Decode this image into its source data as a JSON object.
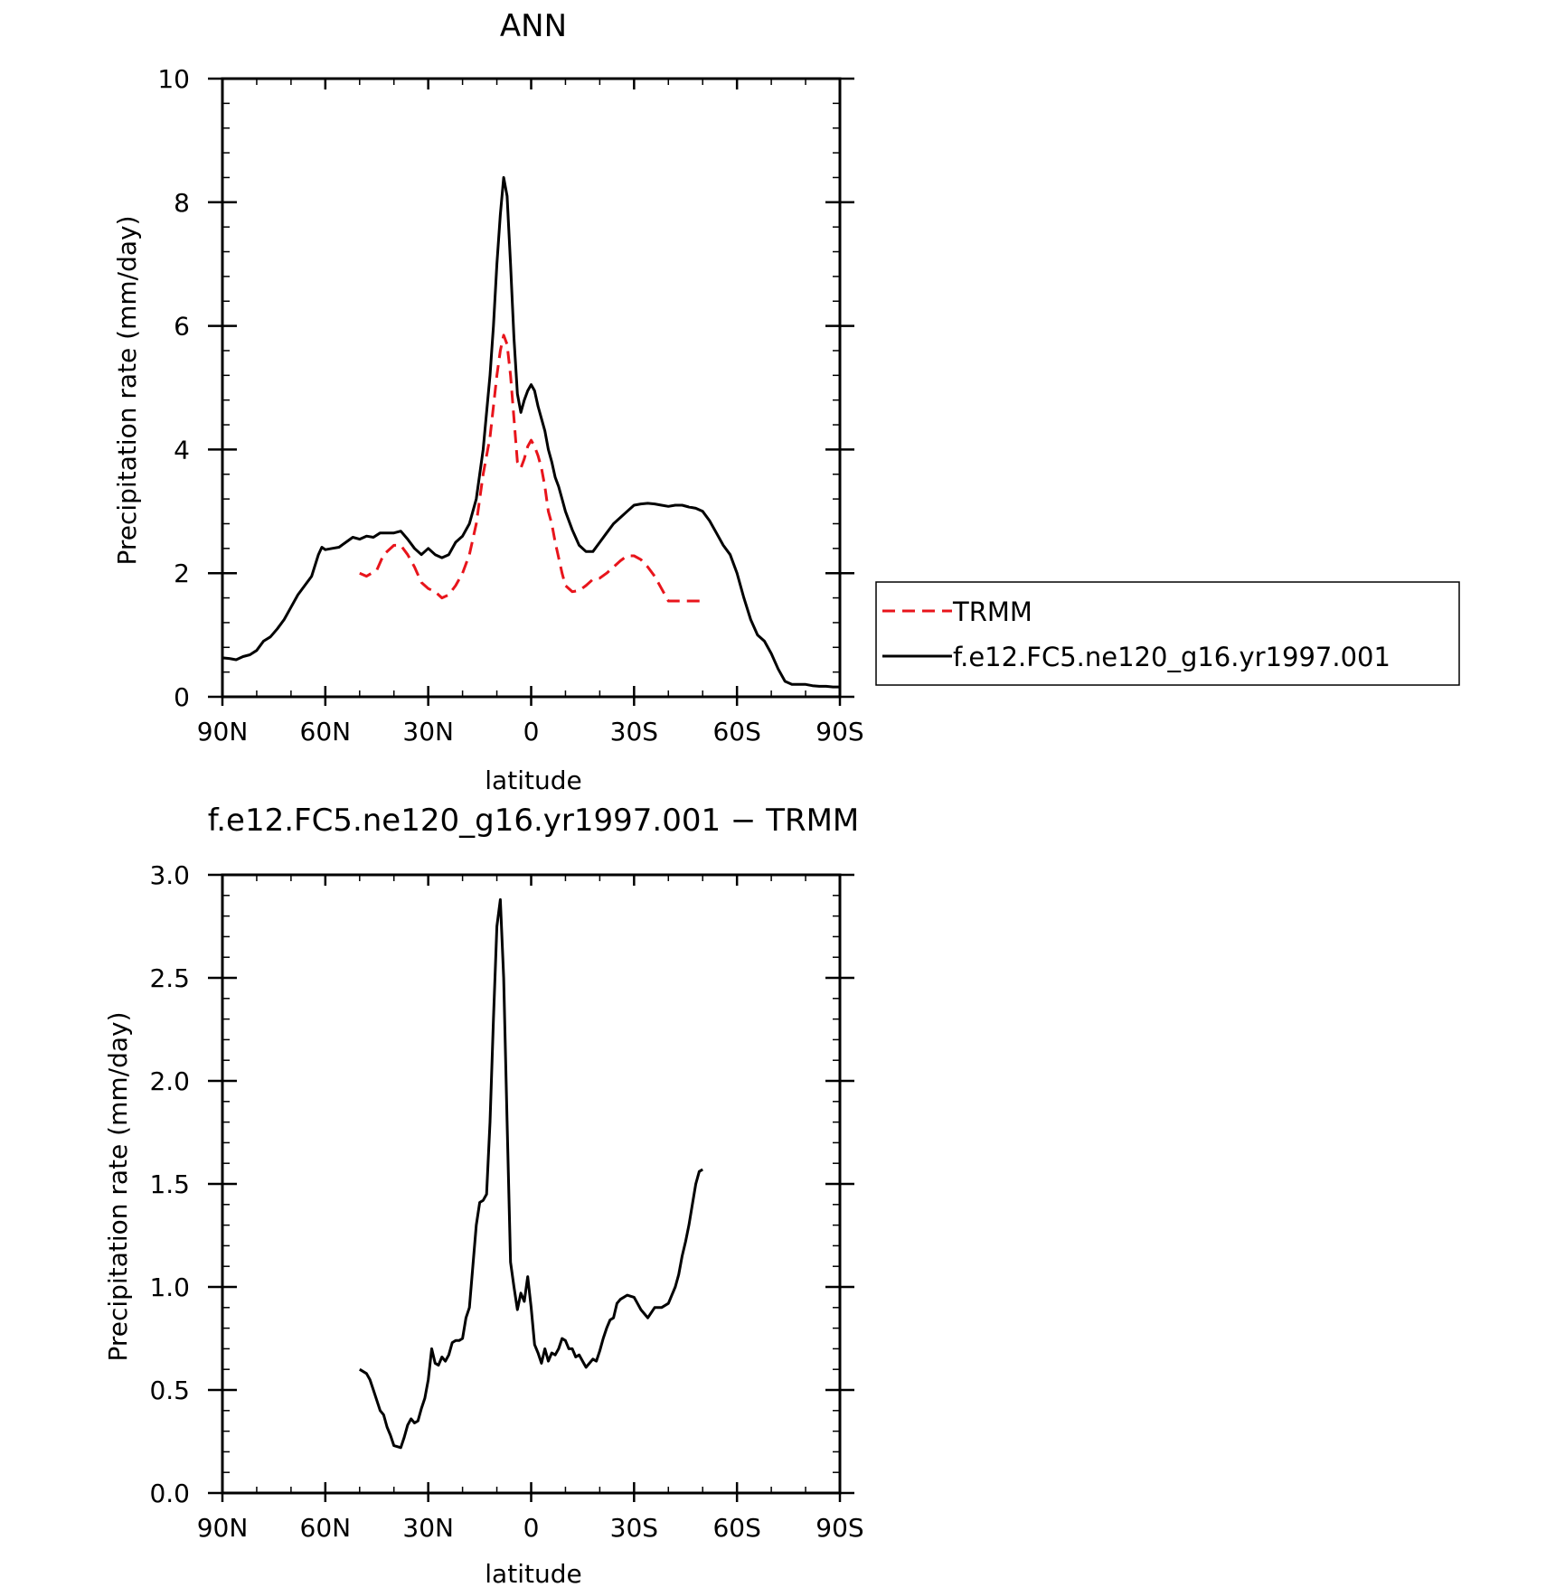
{
  "chart_data": [
    {
      "type": "line",
      "title": "ANN",
      "xlabel": "latitude",
      "ylabel": "Precipitation rate (mm/day)",
      "xlim": [
        90,
        -90
      ],
      "ylim": [
        0,
        10
      ],
      "x_ticks": [
        90,
        60,
        30,
        0,
        -30,
        -60,
        -90
      ],
      "x_tick_labels": [
        "90N",
        "60N",
        "30N",
        "0",
        "30S",
        "60S",
        "90S"
      ],
      "y_ticks": [
        0,
        2,
        4,
        6,
        8,
        10
      ],
      "y_tick_labels": [
        "0",
        "2",
        "4",
        "6",
        "8",
        "10"
      ],
      "legend": {
        "placement": "right",
        "entries": [
          "TRMM",
          "f.e12.FC5.ne120_g16.yr1997.001"
        ]
      },
      "series": [
        {
          "name": "TRMM",
          "color": "#e8141b",
          "dash": "dashed",
          "x": [
            50,
            48,
            45,
            43,
            40,
            38,
            36,
            34,
            32,
            30,
            28,
            26,
            24,
            22,
            20,
            18,
            16,
            14,
            12,
            11,
            10,
            9,
            8,
            7,
            6,
            5,
            4,
            3,
            2,
            1,
            0,
            -1,
            -2,
            -3,
            -4,
            -5,
            -6,
            -7,
            -8,
            -9,
            -10,
            -12,
            -14,
            -16,
            -18,
            -20,
            -22,
            -24,
            -26,
            -28,
            -30,
            -32,
            -34,
            -36,
            -38,
            -40,
            -42,
            -44,
            -46,
            -48,
            -50
          ],
          "y": [
            2.0,
            1.95,
            2.05,
            2.3,
            2.45,
            2.45,
            2.3,
            2.1,
            1.85,
            1.75,
            1.7,
            1.6,
            1.65,
            1.8,
            2.0,
            2.3,
            2.8,
            3.6,
            4.2,
            4.7,
            5.2,
            5.6,
            5.85,
            5.7,
            5.2,
            4.5,
            3.8,
            3.7,
            3.85,
            4.05,
            4.15,
            4.05,
            3.9,
            3.7,
            3.4,
            3.0,
            2.8,
            2.5,
            2.25,
            2.0,
            1.8,
            1.7,
            1.72,
            1.8,
            1.9,
            1.92,
            2.0,
            2.1,
            2.2,
            2.28,
            2.28,
            2.22,
            2.1,
            1.95,
            1.75,
            1.55,
            1.55,
            1.55,
            1.55,
            1.55,
            1.55
          ]
        },
        {
          "name": "f.e12.FC5.ne120_g16.yr1997.001",
          "color": "#000000",
          "dash": "solid",
          "x": [
            90,
            88,
            86,
            84,
            82,
            80,
            78,
            76,
            74,
            72,
            70,
            68,
            66,
            64,
            62,
            61,
            60,
            58,
            56,
            54,
            52,
            50,
            48,
            46,
            44,
            42,
            40,
            38,
            36,
            34,
            32,
            30,
            28,
            26,
            24,
            22,
            20,
            18,
            16,
            14,
            12,
            11,
            10,
            9,
            8,
            7,
            6,
            5,
            4,
            3,
            2,
            1,
            0,
            -1,
            -2,
            -3,
            -4,
            -5,
            -6,
            -7,
            -8,
            -9,
            -10,
            -12,
            -14,
            -16,
            -18,
            -20,
            -22,
            -24,
            -26,
            -28,
            -30,
            -32,
            -34,
            -36,
            -38,
            -40,
            -42,
            -44,
            -46,
            -48,
            -50,
            -52,
            -54,
            -56,
            -58,
            -60,
            -62,
            -64,
            -66,
            -68,
            -70,
            -72,
            -74,
            -76,
            -78,
            -80,
            -82,
            -84,
            -86,
            -88,
            -90
          ],
          "y": [
            0.63,
            0.62,
            0.6,
            0.65,
            0.68,
            0.75,
            0.9,
            0.97,
            1.1,
            1.25,
            1.45,
            1.65,
            1.8,
            1.95,
            2.3,
            2.42,
            2.38,
            2.4,
            2.42,
            2.5,
            2.58,
            2.55,
            2.6,
            2.58,
            2.65,
            2.65,
            2.65,
            2.68,
            2.55,
            2.4,
            2.3,
            2.4,
            2.3,
            2.25,
            2.3,
            2.5,
            2.6,
            2.8,
            3.2,
            4.0,
            5.2,
            6.0,
            7.0,
            7.8,
            8.4,
            8.1,
            7.0,
            5.8,
            4.9,
            4.6,
            4.8,
            4.95,
            5.05,
            4.95,
            4.7,
            4.5,
            4.3,
            4.0,
            3.8,
            3.55,
            3.4,
            3.2,
            3.0,
            2.7,
            2.45,
            2.35,
            2.35,
            2.5,
            2.65,
            2.8,
            2.9,
            3.0,
            3.1,
            3.12,
            3.13,
            3.12,
            3.1,
            3.08,
            3.1,
            3.1,
            3.07,
            3.05,
            3.0,
            2.85,
            2.65,
            2.45,
            2.3,
            2.0,
            1.6,
            1.25,
            1.0,
            0.9,
            0.7,
            0.45,
            0.25,
            0.2,
            0.2,
            0.2,
            0.18,
            0.17,
            0.17,
            0.16,
            0.16
          ]
        }
      ]
    },
    {
      "type": "line",
      "title": "f.e12.FC5.ne120_g16.yr1997.001 − TRMM",
      "xlabel": "latitude",
      "ylabel": "Precipitation rate (mm/day)",
      "xlim": [
        90,
        -90
      ],
      "ylim": [
        0,
        3
      ],
      "x_ticks": [
        90,
        60,
        30,
        0,
        -30,
        -60,
        -90
      ],
      "x_tick_labels": [
        "90N",
        "60N",
        "30N",
        "0",
        "30S",
        "60S",
        "90S"
      ],
      "y_ticks": [
        0,
        0.5,
        1,
        1.5,
        2,
        2.5,
        3
      ],
      "y_tick_labels": [
        "0.0",
        "0.5",
        "1.0",
        "1.5",
        "2.0",
        "2.5",
        "3.0"
      ],
      "series": [
        {
          "color": "#000000",
          "dash": "solid",
          "x": [
            50,
            48,
            47,
            46,
            44,
            43,
            42,
            41,
            40,
            38,
            37,
            36,
            35,
            34,
            33,
            32,
            31,
            30,
            29,
            28,
            27,
            26,
            25,
            24,
            23,
            22,
            21,
            20,
            19,
            18,
            17,
            16,
            15,
            14,
            13,
            12,
            11,
            10,
            9,
            8,
            7,
            6,
            5,
            4,
            3,
            2,
            1,
            0,
            -1,
            -2,
            -3,
            -4,
            -5,
            -6,
            -7,
            -8,
            -9,
            -10,
            -11,
            -12,
            -13,
            -14,
            -15,
            -16,
            -17,
            -18,
            -19,
            -20,
            -21,
            -22,
            -23,
            -24,
            -25,
            -26,
            -28,
            -30,
            -31,
            -32,
            -33,
            -34,
            -36,
            -38,
            -40,
            -41,
            -42,
            -43,
            -44,
            -45,
            -46,
            -47,
            -48,
            -49,
            -50
          ],
          "y": [
            0.6,
            0.58,
            0.55,
            0.5,
            0.4,
            0.38,
            0.32,
            0.28,
            0.23,
            0.22,
            0.27,
            0.33,
            0.36,
            0.34,
            0.35,
            0.41,
            0.46,
            0.55,
            0.7,
            0.63,
            0.62,
            0.66,
            0.64,
            0.67,
            0.73,
            0.74,
            0.74,
            0.75,
            0.85,
            0.9,
            1.1,
            1.3,
            1.41,
            1.42,
            1.45,
            1.8,
            2.3,
            2.75,
            2.88,
            2.5,
            1.8,
            1.12,
            1.0,
            0.89,
            0.97,
            0.93,
            1.05,
            0.9,
            0.72,
            0.68,
            0.63,
            0.7,
            0.64,
            0.68,
            0.67,
            0.7,
            0.75,
            0.74,
            0.7,
            0.7,
            0.66,
            0.67,
            0.64,
            0.61,
            0.63,
            0.65,
            0.64,
            0.69,
            0.75,
            0.8,
            0.84,
            0.85,
            0.92,
            0.94,
            0.96,
            0.95,
            0.92,
            0.89,
            0.87,
            0.85,
            0.9,
            0.9,
            0.92,
            0.96,
            1.0,
            1.06,
            1.15,
            1.22,
            1.3,
            1.4,
            1.5,
            1.56,
            1.57
          ]
        }
      ]
    }
  ]
}
